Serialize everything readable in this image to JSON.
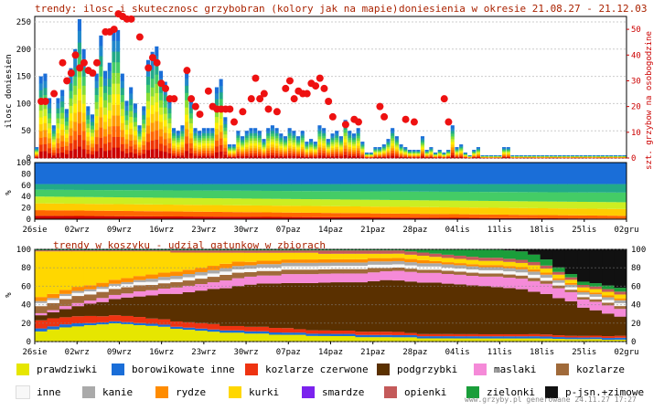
{
  "header": {
    "title": "trendy: ilosc i skutecznosc grzybobran (kolory jak na mapie)",
    "period": "doniesienia w okresie 21.08.27 - 21.12.03"
  },
  "chart_data": [
    {
      "type": "bar",
      "panel": "top",
      "ylabel": "ilosc doniesien",
      "y2label": "szt. grzybow na osobogodzine",
      "ylim": [
        0,
        260
      ],
      "y2lim": [
        0,
        55
      ],
      "yticks": [
        "0",
        "50",
        "100",
        "150",
        "200",
        "250"
      ],
      "y2ticks": [
        "0",
        "10",
        "20",
        "30",
        "40",
        "50"
      ],
      "grid": true,
      "bar_colors": "heat scale (red-orange-yellow-green-blue)",
      "values": [
        20,
        150,
        155,
        110,
        60,
        110,
        125,
        90,
        165,
        200,
        255,
        200,
        95,
        80,
        155,
        225,
        160,
        175,
        235,
        235,
        155,
        105,
        130,
        100,
        60,
        95,
        180,
        195,
        205,
        160,
        140,
        110,
        55,
        50,
        60,
        160,
        110,
        55,
        50,
        55,
        55,
        55,
        130,
        145,
        75,
        25,
        25,
        50,
        40,
        50,
        55,
        55,
        50,
        35,
        55,
        60,
        55,
        45,
        40,
        55,
        50,
        40,
        50,
        30,
        35,
        30,
        60,
        55,
        35,
        45,
        50,
        40,
        70,
        50,
        45,
        55,
        30,
        10,
        10,
        20,
        20,
        25,
        35,
        55,
        40,
        25,
        20,
        15,
        15,
        15,
        40,
        15,
        20,
        10,
        15,
        10,
        15,
        60,
        20,
        25,
        10,
        5,
        15,
        20,
        5,
        5,
        5,
        5,
        5,
        20,
        20,
        5,
        5,
        5,
        5,
        5,
        5,
        5,
        5,
        5,
        5,
        5,
        5,
        5,
        5,
        5,
        5,
        5,
        5,
        5,
        5,
        5,
        5,
        5,
        5,
        5,
        5,
        5
      ],
      "dots": [
        [
          1,
          22
        ],
        [
          2,
          22
        ],
        [
          4,
          25
        ],
        [
          6,
          37
        ],
        [
          7,
          30
        ],
        [
          8,
          33
        ],
        [
          9,
          40
        ],
        [
          10,
          35
        ],
        [
          11,
          37
        ],
        [
          12,
          34
        ],
        [
          13,
          33
        ],
        [
          14,
          37
        ],
        [
          16,
          49
        ],
        [
          17,
          49
        ],
        [
          18,
          50
        ],
        [
          19,
          56
        ],
        [
          20,
          55
        ],
        [
          21,
          54
        ],
        [
          22,
          54
        ],
        [
          24,
          47
        ],
        [
          26,
          35
        ],
        [
          27,
          39
        ],
        [
          28,
          37
        ],
        [
          29,
          29
        ],
        [
          30,
          27
        ],
        [
          31,
          23
        ],
        [
          32,
          23
        ],
        [
          35,
          34
        ],
        [
          36,
          23
        ],
        [
          37,
          20
        ],
        [
          38,
          17
        ],
        [
          40,
          26
        ],
        [
          41,
          20
        ],
        [
          42,
          19
        ],
        [
          43,
          19
        ],
        [
          44,
          19
        ],
        [
          45,
          19
        ],
        [
          46,
          14
        ],
        [
          48,
          18
        ],
        [
          50,
          23
        ],
        [
          51,
          31
        ],
        [
          52,
          23
        ],
        [
          53,
          25
        ],
        [
          54,
          19
        ],
        [
          56,
          18
        ],
        [
          58,
          27
        ],
        [
          59,
          30
        ],
        [
          60,
          23
        ],
        [
          61,
          26
        ],
        [
          62,
          25
        ],
        [
          63,
          25
        ],
        [
          64,
          29
        ],
        [
          65,
          28
        ],
        [
          66,
          31
        ],
        [
          67,
          27
        ],
        [
          68,
          22
        ],
        [
          69,
          16
        ],
        [
          72,
          13
        ],
        [
          74,
          15
        ],
        [
          75,
          14
        ],
        [
          80,
          20
        ],
        [
          81,
          16
        ],
        [
          86,
          15
        ],
        [
          88,
          14
        ],
        [
          95,
          23
        ],
        [
          96,
          14
        ]
      ],
      "series_axis": "y2"
    },
    {
      "type": "area",
      "panel": "middle",
      "ylabel": "%",
      "ylim": [
        0,
        100
      ],
      "yticks": [
        "0",
        "20",
        "40",
        "60",
        "80",
        "100"
      ],
      "xticks": [
        "26sie",
        "02wrz",
        "09wrz",
        "16wrz",
        "23wrz",
        "30wrz",
        "07paz",
        "14paz",
        "21paz",
        "28paz",
        "04lis",
        "11lis",
        "18lis",
        "25lis",
        "02gru"
      ]
    },
    {
      "type": "area",
      "panel": "bottom",
      "title": "trendy w koszyku - udzial gatunkow w zbiorach",
      "ylabel": "%",
      "ylim": [
        0,
        100
      ],
      "yticks": [
        "0",
        "20",
        "40",
        "60",
        "80",
        "100"
      ],
      "xticks": [
        "26sie",
        "02wrz",
        "09wrz",
        "16wrz",
        "23wrz",
        "30wrz",
        "07paz",
        "14paz",
        "21paz",
        "28paz",
        "04lis",
        "11lis",
        "18lis",
        "25lis",
        "02gru"
      ],
      "series": [
        {
          "name": "prawdziwki",
          "color": "#e6e600",
          "values": [
            10,
            12,
            14,
            15,
            16,
            17,
            18,
            17,
            16,
            15,
            14,
            12,
            11,
            10,
            9,
            8,
            8,
            7,
            7,
            6,
            6,
            6,
            5,
            5,
            5,
            5,
            4,
            4,
            4,
            4,
            4,
            3,
            3,
            3,
            3,
            3,
            3,
            3,
            3,
            3,
            3,
            3,
            3,
            3,
            3,
            3,
            2,
            2
          ]
        },
        {
          "name": "borowikowate inne",
          "color": "#1a6ed8",
          "values": [
            3,
            3,
            3,
            3,
            2,
            2,
            2,
            2,
            2,
            2,
            2,
            2,
            2,
            2,
            2,
            2,
            2,
            2,
            2,
            2,
            2,
            2,
            2,
            2,
            2,
            2,
            2,
            2,
            2,
            2,
            2,
            2,
            2,
            2,
            2,
            2,
            2,
            2,
            2,
            2,
            2,
            2,
            2,
            2,
            2,
            2,
            2,
            2
          ]
        },
        {
          "name": "kozlarze czerwone",
          "color": "#ee3311",
          "values": [
            8,
            8,
            7,
            7,
            7,
            6,
            6,
            6,
            6,
            5,
            5,
            5,
            5,
            5,
            5,
            4,
            4,
            4,
            4,
            4,
            4,
            3,
            3,
            3,
            3,
            3,
            3,
            3,
            3,
            3,
            2,
            2,
            2,
            2,
            2,
            2,
            2,
            2,
            2,
            2,
            2,
            2,
            2,
            2,
            2,
            2,
            2,
            2
          ]
        },
        {
          "name": "podgrzybki",
          "color": "#5a3000",
          "values": [
            5,
            6,
            8,
            10,
            12,
            14,
            16,
            18,
            20,
            22,
            24,
            26,
            28,
            30,
            32,
            34,
            36,
            37,
            38,
            39,
            40,
            41,
            42,
            43,
            44,
            44,
            45,
            46,
            47,
            48,
            48,
            48,
            48,
            47,
            47,
            46,
            46,
            45,
            44,
            43,
            40,
            40,
            41,
            42,
            35,
            30,
            25,
            20
          ]
        },
        {
          "name": "maslaki",
          "color": "#f58ad8",
          "values": [
            2,
            2,
            3,
            3,
            3,
            4,
            4,
            4,
            5,
            5,
            5,
            6,
            6,
            6,
            6,
            7,
            7,
            7,
            7,
            7,
            8,
            8,
            8,
            8,
            8,
            8,
            8,
            8,
            8,
            9,
            9,
            9,
            9,
            9,
            9,
            9,
            9,
            10,
            10,
            10,
            10,
            10,
            11,
            11,
            10,
            10,
            9,
            8
          ]
        },
        {
          "name": "kozlarze",
          "color": "#a06a3a",
          "values": [
            7,
            7,
            7,
            7,
            6,
            6,
            6,
            6,
            6,
            5,
            5,
            5,
            5,
            5,
            5,
            5,
            5,
            4,
            4,
            4,
            4,
            4,
            4,
            4,
            4,
            4,
            4,
            4,
            3,
            3,
            3,
            3,
            3,
            3,
            3,
            3,
            3,
            3,
            3,
            3,
            3,
            3,
            3,
            3,
            3,
            3,
            3,
            3
          ]
        },
        {
          "name": "inne",
          "color": "#f8f8f8",
          "values": [
            3,
            3,
            3,
            3,
            3,
            3,
            3,
            3,
            3,
            3,
            3,
            3,
            3,
            3,
            3,
            3,
            3,
            3,
            3,
            3,
            3,
            3,
            3,
            3,
            3,
            3,
            3,
            3,
            3,
            3,
            3,
            3,
            3,
            3,
            3,
            3,
            3,
            3,
            3,
            3,
            3,
            3,
            3,
            3,
            3,
            3,
            3,
            3
          ]
        },
        {
          "name": "kanie",
          "color": "#aaaaaa",
          "values": [
            2,
            2,
            2,
            2,
            2,
            2,
            2,
            2,
            2,
            3,
            3,
            3,
            3,
            3,
            3,
            3,
            3,
            3,
            3,
            3,
            3,
            3,
            3,
            3,
            3,
            3,
            3,
            3,
            3,
            3,
            3,
            3,
            3,
            3,
            3,
            3,
            3,
            3,
            3,
            3,
            3,
            3,
            3,
            3,
            3,
            3,
            3,
            3
          ]
        },
        {
          "name": "rydze",
          "color": "#ff8c00",
          "values": [
            4,
            4,
            4,
            4,
            4,
            4,
            4,
            4,
            4,
            4,
            4,
            4,
            4,
            4,
            4,
            4,
            4,
            3,
            3,
            3,
            3,
            3,
            3,
            3,
            3,
            3,
            3,
            3,
            3,
            3,
            3,
            3,
            2,
            2,
            2,
            2,
            2,
            2,
            2,
            2,
            2,
            2,
            2,
            2,
            2,
            2,
            2,
            2
          ]
        },
        {
          "name": "kurki",
          "color": "#ffd700",
          "values": [
            45,
            42,
            38,
            35,
            33,
            31,
            28,
            26,
            24,
            22,
            20,
            18,
            16,
            14,
            12,
            10,
            8,
            8,
            7,
            7,
            6,
            6,
            6,
            5,
            5,
            5,
            5,
            4,
            4,
            4,
            4,
            4,
            4,
            4,
            4,
            4,
            4,
            4,
            4,
            4,
            4,
            4,
            4,
            4,
            4,
            4,
            4,
            4
          ]
        },
        {
          "name": "smardze",
          "color": "#7b22ee",
          "values": [
            0,
            0,
            0,
            0,
            0,
            0,
            0,
            0,
            0,
            0,
            0,
            0,
            0,
            0,
            0,
            0,
            0,
            0,
            0,
            0,
            0,
            0,
            0,
            0,
            0,
            0,
            0,
            0,
            0,
            0,
            0,
            0,
            0,
            0,
            0,
            0,
            0,
            0,
            0,
            0,
            0,
            0,
            0,
            0,
            0,
            0,
            0,
            0
          ]
        },
        {
          "name": "opienki",
          "color": "#c45a5a",
          "values": [
            1,
            1,
            1,
            1,
            1,
            1,
            1,
            1,
            1,
            1,
            1,
            2,
            2,
            2,
            2,
            2,
            2,
            2,
            2,
            2,
            2,
            2,
            2,
            3,
            3,
            3,
            3,
            3,
            3,
            3,
            3,
            3,
            3,
            3,
            3,
            3,
            3,
            3,
            3,
            3,
            3,
            3,
            3,
            3,
            3,
            3,
            3,
            3
          ]
        },
        {
          "name": "zielonki",
          "color": "#1a9e3a",
          "values": [
            1,
            1,
            1,
            1,
            1,
            1,
            1,
            1,
            1,
            1,
            1,
            1,
            1,
            1,
            1,
            1,
            1,
            1,
            1,
            1,
            1,
            1,
            1,
            1,
            1,
            1,
            1,
            1,
            1,
            1,
            2,
            3,
            4,
            5,
            6,
            7,
            8,
            8,
            8,
            8,
            7,
            6,
            5,
            4,
            4,
            4,
            4,
            4
          ]
        },
        {
          "name": "p-jsn.+zimowe",
          "color": "#111111",
          "values": [
            0,
            0,
            0,
            0,
            0,
            0,
            0,
            0,
            0,
            0,
            0,
            0,
            0,
            0,
            0,
            0,
            0,
            0,
            0,
            0,
            0,
            0,
            0,
            0,
            0,
            0,
            0,
            0,
            0,
            0,
            0,
            0,
            0,
            0,
            0,
            0,
            0,
            0,
            1,
            2,
            5,
            10,
            20,
            30,
            40,
            40,
            40,
            40
          ]
        }
      ]
    }
  ],
  "legend": [
    {
      "name": "prawdziwki",
      "color": "#e6e600"
    },
    {
      "name": "borowikowate inne",
      "color": "#1a6ed8"
    },
    {
      "name": "kozlarze czerwone",
      "color": "#ee3311"
    },
    {
      "name": "podgrzybki",
      "color": "#5a3000"
    },
    {
      "name": "maslaki",
      "color": "#f58ad8"
    },
    {
      "name": "kozlarze",
      "color": "#a06a3a"
    },
    {
      "name": "inne",
      "color": "#f8f8f8"
    },
    {
      "name": "kanie",
      "color": "#aaaaaa"
    },
    {
      "name": "rydze",
      "color": "#ff8c00"
    },
    {
      "name": "kurki",
      "color": "#ffd700"
    },
    {
      "name": "smardze",
      "color": "#7b22ee"
    },
    {
      "name": "opienki",
      "color": "#c45a5a"
    },
    {
      "name": "zielonki",
      "color": "#1a9e3a"
    },
    {
      "name": "p-jsn.+zimowe",
      "color": "#111111"
    }
  ],
  "footer": "www.grzyby.pl generowane 24.11.27 17:27",
  "colors": {
    "title": "#aa2200",
    "axis_right": "#cc0000",
    "bottom_title": "#aa2200",
    "dot": "#ee1111"
  }
}
